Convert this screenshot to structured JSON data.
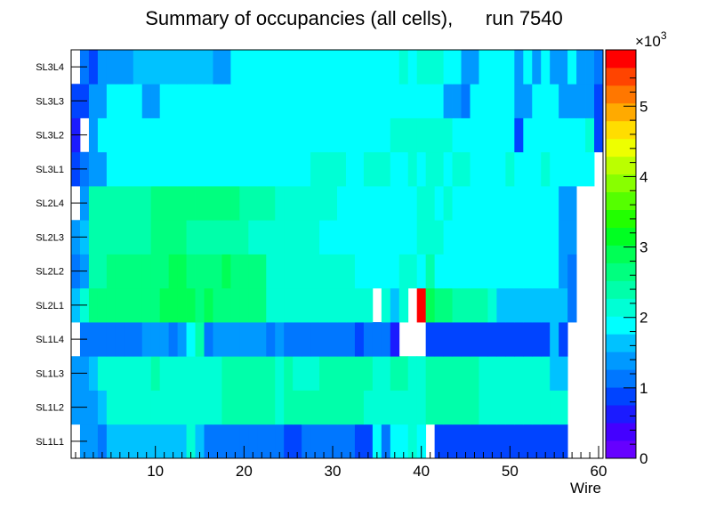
{
  "chart_data": {
    "type": "heatmap",
    "title": "Summary of occupancies (all cells),      run 7540",
    "xlabel": "Wire",
    "ylabel": "",
    "x_range": [
      0.5,
      60.5
    ],
    "x_ticks": [
      10,
      20,
      30,
      40,
      50,
      60
    ],
    "y_categories": [
      "SL1L1",
      "SL1L2",
      "SL1L3",
      "SL1L4",
      "SL2L1",
      "SL2L2",
      "SL2L3",
      "SL2L4",
      "SL3L1",
      "SL3L2",
      "SL3L3",
      "SL3L4"
    ],
    "z_range": [
      0,
      5800
    ],
    "z_ticks": [
      0,
      1,
      2,
      3,
      4,
      5
    ],
    "z_exponent_label": "×10",
    "z_exponent_power": "3",
    "grid": false,
    "values": [
      [
        0,
        1500,
        1500,
        1200,
        1750,
        1750,
        1750,
        1750,
        1750,
        1750,
        1750,
        1750,
        1750,
        2100,
        1750,
        1200,
        1200,
        1200,
        1200,
        1200,
        1200,
        1200,
        1200,
        1200,
        900,
        900,
        1200,
        1200,
        1200,
        1200,
        1200,
        1200,
        900,
        900,
        1800,
        1200,
        1950,
        1850,
        2050,
        1850,
        0,
        900,
        900,
        900,
        900,
        900,
        900,
        900,
        900,
        900,
        900,
        900,
        900,
        900,
        900,
        900,
        0,
        0,
        0,
        0
      ],
      [
        1500,
        1500,
        1500,
        1750,
        2100,
        2100,
        2100,
        2100,
        2100,
        2100,
        2100,
        2100,
        2100,
        2100,
        2100,
        2100,
        2100,
        2400,
        2400,
        2400,
        2400,
        2400,
        2400,
        2100,
        2400,
        2400,
        2400,
        2400,
        2400,
        2400,
        2400,
        2400,
        2400,
        2200,
        2200,
        2200,
        2200,
        2200,
        2200,
        2200,
        2400,
        2400,
        2400,
        2400,
        2400,
        2400,
        2100,
        2100,
        2100,
        2100,
        2100,
        2100,
        2100,
        2100,
        2100,
        2100,
        0,
        0,
        0,
        0
      ],
      [
        1500,
        1500,
        1750,
        2100,
        2100,
        2100,
        2100,
        2100,
        2100,
        2400,
        2100,
        2100,
        2100,
        2100,
        2100,
        2100,
        2100,
        2400,
        2400,
        2400,
        2400,
        2400,
        2400,
        2100,
        2400,
        2100,
        2100,
        2100,
        2400,
        2400,
        2400,
        2400,
        2400,
        2400,
        2100,
        2100,
        2400,
        2400,
        2100,
        2100,
        2400,
        2400,
        2400,
        2400,
        2400,
        2400,
        2100,
        2100,
        2100,
        2100,
        2100,
        2100,
        2100,
        2100,
        1750,
        1750,
        0,
        0,
        0,
        0
      ],
      [
        0,
        1200,
        1200,
        1200,
        1200,
        1200,
        1200,
        1200,
        1500,
        1500,
        1500,
        1200,
        1500,
        1850,
        2500,
        1200,
        1500,
        1500,
        1500,
        1500,
        1500,
        1500,
        1200,
        1500,
        1200,
        1200,
        1200,
        1200,
        1200,
        1200,
        1200,
        1200,
        900,
        1200,
        1200,
        1200,
        600,
        0,
        0,
        0,
        800,
        800,
        800,
        800,
        800,
        800,
        800,
        800,
        800,
        800,
        800,
        800,
        800,
        800,
        1750,
        800,
        0,
        0,
        0,
        0
      ],
      [
        1750,
        2100,
        2700,
        2700,
        2700,
        2700,
        2700,
        2700,
        2700,
        2700,
        3000,
        3000,
        3000,
        2800,
        2700,
        3000,
        2700,
        2700,
        2700,
        2700,
        2700,
        2700,
        2100,
        2100,
        2100,
        2100,
        2100,
        2100,
        2100,
        2100,
        2100,
        2100,
        2100,
        2100,
        0,
        2100,
        1750,
        2100,
        0,
        5700,
        3000,
        2700,
        2700,
        2400,
        2400,
        2400,
        2400,
        2100,
        1750,
        1750,
        1750,
        1750,
        1750,
        1750,
        1750,
        1750,
        1200,
        0,
        0,
        0
      ],
      [
        1200,
        1500,
        2400,
        2400,
        2700,
        2700,
        2700,
        2700,
        2700,
        2700,
        2700,
        3000,
        3000,
        2700,
        2700,
        2700,
        2700,
        2900,
        2700,
        2700,
        2700,
        2700,
        2100,
        2100,
        2100,
        2100,
        2100,
        2100,
        2100,
        2100,
        2100,
        2100,
        1850,
        1850,
        1850,
        1850,
        1850,
        2100,
        2100,
        1850,
        2400,
        1850,
        1850,
        1850,
        1850,
        1850,
        1850,
        1850,
        1850,
        1850,
        1850,
        1850,
        1850,
        1850,
        1850,
        1500,
        1200,
        0,
        0,
        0
      ],
      [
        1500,
        1750,
        2400,
        2400,
        2400,
        2400,
        2400,
        2400,
        2400,
        2700,
        2700,
        2700,
        2700,
        2400,
        2400,
        2400,
        2400,
        2400,
        2400,
        2400,
        2100,
        2100,
        2100,
        2100,
        2100,
        2100,
        2100,
        2100,
        1850,
        1850,
        1850,
        1850,
        1850,
        1850,
        1850,
        1850,
        1850,
        1850,
        1850,
        2100,
        2100,
        2100,
        1850,
        1850,
        1850,
        1850,
        1850,
        1850,
        1850,
        1850,
        1850,
        1850,
        1850,
        1850,
        1850,
        1500,
        1500,
        0,
        0,
        0
      ],
      [
        0,
        1500,
        2400,
        2400,
        2400,
        2400,
        2400,
        2400,
        2400,
        2700,
        2700,
        2700,
        2700,
        2700,
        2700,
        2700,
        2700,
        2700,
        2700,
        2400,
        2400,
        2400,
        2400,
        2100,
        2100,
        2100,
        2100,
        2100,
        2100,
        2100,
        1850,
        1850,
        1850,
        1850,
        1850,
        1850,
        1850,
        1850,
        1850,
        2100,
        2100,
        1850,
        2100,
        1850,
        1850,
        1850,
        1850,
        1850,
        1850,
        1850,
        1850,
        1850,
        1850,
        1850,
        1850,
        1500,
        1500,
        0,
        0,
        0
      ],
      [
        900,
        1200,
        1500,
        1500,
        1850,
        1850,
        1850,
        1850,
        1850,
        1850,
        1850,
        1850,
        1850,
        1850,
        1850,
        1850,
        1850,
        1850,
        1850,
        1850,
        1850,
        1850,
        1850,
        1850,
        1850,
        1850,
        1850,
        2100,
        2100,
        2100,
        2100,
        1850,
        1850,
        2100,
        2100,
        2100,
        1850,
        1850,
        2100,
        1850,
        2100,
        2100,
        1850,
        2100,
        2100,
        1850,
        1850,
        1850,
        1850,
        2100,
        1850,
        1850,
        1850,
        2100,
        1850,
        1850,
        1850,
        1850,
        1850,
        0
      ],
      [
        600,
        0,
        1500,
        1850,
        1850,
        1850,
        1850,
        1850,
        1850,
        1850,
        1850,
        1850,
        1850,
        1850,
        1850,
        1850,
        1850,
        1850,
        1850,
        1850,
        1850,
        1850,
        1850,
        1850,
        1850,
        1850,
        1850,
        1850,
        1850,
        1850,
        1850,
        1850,
        1850,
        1850,
        1850,
        1850,
        2100,
        2100,
        2100,
        2100,
        2100,
        2100,
        2100,
        1850,
        1850,
        1850,
        1850,
        1850,
        1850,
        1850,
        900,
        1850,
        1850,
        1850,
        1850,
        1850,
        1850,
        1850,
        2100,
        900
      ],
      [
        800,
        800,
        1500,
        1500,
        1850,
        1850,
        1850,
        1850,
        1500,
        1500,
        1850,
        1850,
        1850,
        1850,
        1850,
        1850,
        1850,
        1850,
        1850,
        1850,
        1850,
        1850,
        1850,
        1850,
        1850,
        1850,
        1850,
        1850,
        1850,
        1850,
        1850,
        1850,
        1850,
        1850,
        1850,
        1850,
        1850,
        1850,
        1850,
        1850,
        1850,
        1850,
        1500,
        1500,
        1200,
        1850,
        1850,
        1850,
        1850,
        1850,
        1500,
        1500,
        1850,
        1850,
        1850,
        1500,
        1500,
        1500,
        1500,
        900
      ],
      [
        0,
        1200,
        900,
        1500,
        1500,
        1500,
        1500,
        1750,
        1750,
        1750,
        1750,
        1750,
        1750,
        1750,
        1750,
        1750,
        1500,
        1500,
        1850,
        1850,
        1850,
        1850,
        1850,
        1850,
        1850,
        1850,
        1850,
        1850,
        1850,
        1850,
        1850,
        1850,
        1850,
        1850,
        1850,
        1850,
        1850,
        2100,
        1850,
        2100,
        2100,
        2100,
        1850,
        1850,
        1500,
        1500,
        1850,
        1850,
        1850,
        1850,
        1500,
        1850,
        1500,
        1850,
        1500,
        1500,
        1850,
        1500,
        1500,
        1200
      ]
    ]
  }
}
